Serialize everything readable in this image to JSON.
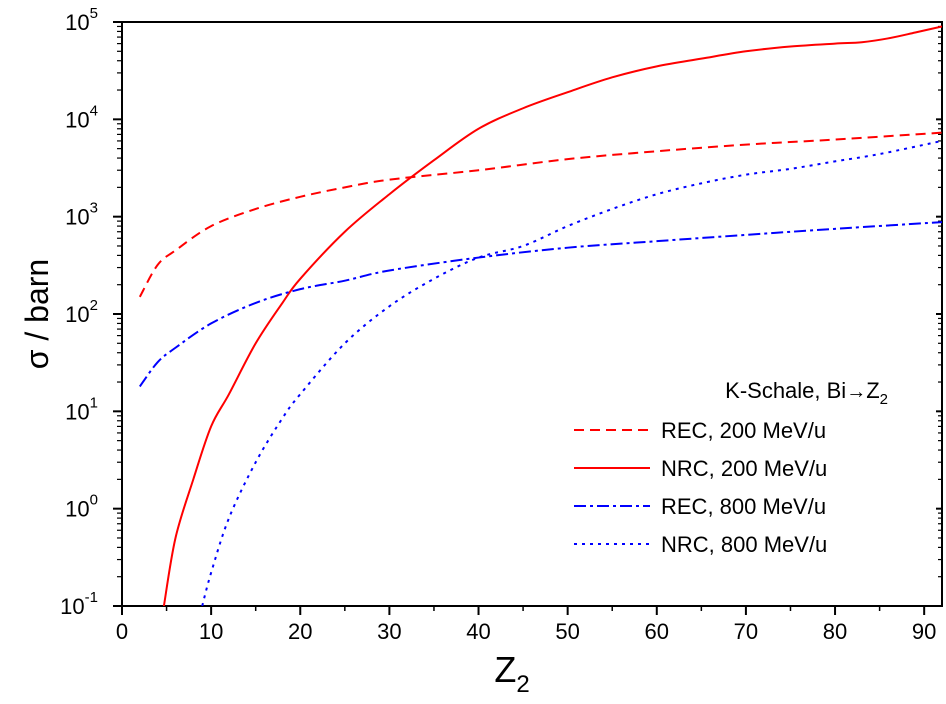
{
  "chart_data": {
    "type": "line",
    "xlabel": {
      "main": "Z",
      "sub": "2"
    },
    "ylabel": "σ / barn",
    "xlim": [
      0,
      92
    ],
    "ylim": [
      0.1,
      100000
    ],
    "y_scale": "log",
    "x_ticks": [
      0,
      10,
      20,
      30,
      40,
      50,
      60,
      70,
      80,
      90
    ],
    "y_ticks": [
      {
        "base": "10",
        "exp": "-1",
        "value": 0.1
      },
      {
        "base": "10",
        "exp": "0",
        "value": 1
      },
      {
        "base": "10",
        "exp": "1",
        "value": 10
      },
      {
        "base": "10",
        "exp": "2",
        "value": 100
      },
      {
        "base": "10",
        "exp": "3",
        "value": 1000
      },
      {
        "base": "10",
        "exp": "4",
        "value": 10000
      },
      {
        "base": "10",
        "exp": "5",
        "value": 100000
      }
    ],
    "grid": false,
    "legend": {
      "position": "bottom-right",
      "title_main": "K-Schale, Bi",
      "title_arrow": "→",
      "title_z": "Z",
      "title_sub": "2"
    },
    "series": [
      {
        "name": "REC, 200 MeV/u",
        "color": "#ff0000",
        "style": "dash",
        "x": [
          2,
          4,
          6,
          10,
          15,
          20,
          25,
          30,
          40,
          50,
          60,
          70,
          80,
          92
        ],
        "y": [
          150,
          320,
          450,
          800,
          1200,
          1600,
          2000,
          2400,
          3000,
          3900,
          4700,
          5500,
          6200,
          7300
        ]
      },
      {
        "name": "NRC, 200 MeV/u",
        "color": "#ff0000",
        "style": "solid",
        "x": [
          4.7,
          6,
          8,
          10,
          12,
          15,
          18,
          20,
          25,
          30,
          35,
          40,
          45,
          50,
          55,
          60,
          65,
          70,
          75,
          80,
          83,
          86,
          89,
          92
        ],
        "y": [
          0.1,
          0.5,
          2,
          7,
          15,
          50,
          130,
          230,
          700,
          1700,
          3800,
          8000,
          13000,
          19000,
          27000,
          35000,
          42000,
          50000,
          56000,
          60000,
          62000,
          68000,
          78000,
          90000
        ]
      },
      {
        "name": "REC, 800 MeV/u",
        "color": "#0000ff",
        "style": "dashdot",
        "x": [
          2,
          4,
          6,
          10,
          15,
          20,
          25,
          30,
          40,
          50,
          60,
          70,
          80,
          92
        ],
        "y": [
          18,
          32,
          45,
          80,
          130,
          180,
          220,
          280,
          380,
          480,
          560,
          650,
          750,
          880
        ]
      },
      {
        "name": "NRC, 800 MeV/u",
        "color": "#0000ff",
        "style": "dot",
        "x": [
          9,
          10,
          12,
          15,
          18,
          20,
          25,
          30,
          35,
          40,
          45,
          50,
          55,
          60,
          65,
          70,
          75,
          80,
          85,
          92
        ],
        "y": [
          0.1,
          0.22,
          0.8,
          3,
          8.5,
          15,
          50,
          120,
          230,
          380,
          500,
          800,
          1200,
          1700,
          2200,
          2700,
          3100,
          3700,
          4400,
          6000
        ]
      }
    ]
  }
}
